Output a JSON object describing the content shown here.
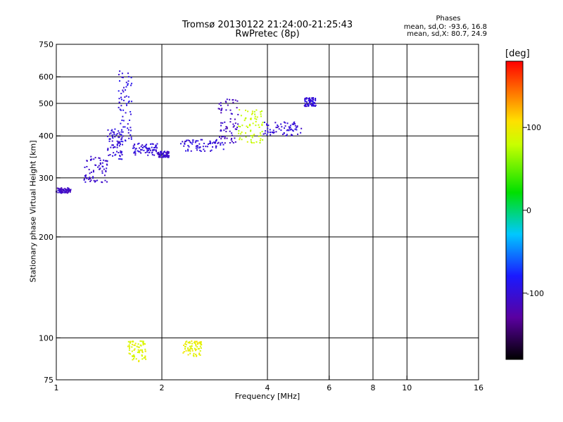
{
  "chart_data": {
    "type": "scatter",
    "title": "Tromsø 20130122 21:24:00-21:25:43",
    "subtitle": "RwPretec (8p)",
    "xlabel": "Frequency [MHz]",
    "ylabel": "Stationary phase Virtual Height [km]",
    "x_scale": "log",
    "y_scale": "log",
    "xlim": [
      1,
      16
    ],
    "ylim": [
      75,
      750
    ],
    "x_ticks": [
      1,
      2,
      4,
      6,
      8,
      10,
      16
    ],
    "y_ticks": [
      75,
      100,
      200,
      300,
      400,
      500,
      600,
      750
    ],
    "x_gridlines": [
      2,
      4,
      6,
      8,
      10
    ],
    "y_gridlines": [
      100,
      200,
      300,
      400,
      500,
      600
    ],
    "grid": true,
    "phase_stats": {
      "heading": "Phases",
      "line_o": "mean, sd,O: -93.6, 16.8",
      "line_x": "mean, sd,X:  80.7, 24.9"
    },
    "colorbar": {
      "label": "[deg]",
      "range": [
        -180,
        180
      ],
      "ticks": [
        100,
        0,
        -100
      ],
      "colormap": "rainbow (black-purple-blue-cyan-green-yellow-red)"
    },
    "trace_segments": [
      {
        "trace": "low-frequency O-trace",
        "x_range": [
          1.0,
          1.1
        ],
        "y_range": [
          270,
          280
        ],
        "phase": -110
      },
      {
        "trace": "low-frequency O-trace",
        "x_range": [
          1.2,
          1.4
        ],
        "y_range": [
          290,
          350
        ],
        "phase": -105
      },
      {
        "trace": "low-frequency O-trace",
        "x_range": [
          1.4,
          1.55
        ],
        "y_range": [
          340,
          420
        ],
        "phase": -100
      },
      {
        "trace": "low-frequency O-trace cusp",
        "x_range": [
          1.5,
          1.65
        ],
        "y_range": [
          380,
          650
        ],
        "phase": -95
      },
      {
        "trace": "low-frequency O-trace",
        "x_range": [
          1.65,
          1.95
        ],
        "y_range": [
          350,
          380
        ],
        "phase": -100
      },
      {
        "trace": "low-frequency O-trace",
        "x_range": [
          1.95,
          2.1
        ],
        "y_range": [
          345,
          360
        ],
        "phase": -105
      },
      {
        "trace": "F-region O-trace",
        "x_range": [
          2.25,
          3.0
        ],
        "y_range": [
          360,
          390
        ],
        "phase": -100
      },
      {
        "trace": "F-region O-trace",
        "x_range": [
          2.9,
          3.3
        ],
        "y_range": [
          380,
          520
        ],
        "phase": -110
      },
      {
        "trace": "F-region X-trace",
        "x_range": [
          3.3,
          3.9
        ],
        "y_range": [
          380,
          480
        ],
        "phase": 80
      },
      {
        "trace": "F-region trace",
        "x_range": [
          3.9,
          5.0
        ],
        "y_range": [
          400,
          440
        ],
        "phase": -100
      },
      {
        "trace": "F-region trace",
        "x_range": [
          5.1,
          5.5
        ],
        "y_range": [
          490,
          520
        ],
        "phase": -100
      },
      {
        "trace": "E-region echoes",
        "x_range": [
          1.6,
          1.8
        ],
        "y_range": [
          85,
          98
        ],
        "phase": 90
      },
      {
        "trace": "E-region echoes",
        "x_range": [
          2.3,
          2.6
        ],
        "y_range": [
          88,
          98
        ],
        "phase": 95
      }
    ]
  }
}
